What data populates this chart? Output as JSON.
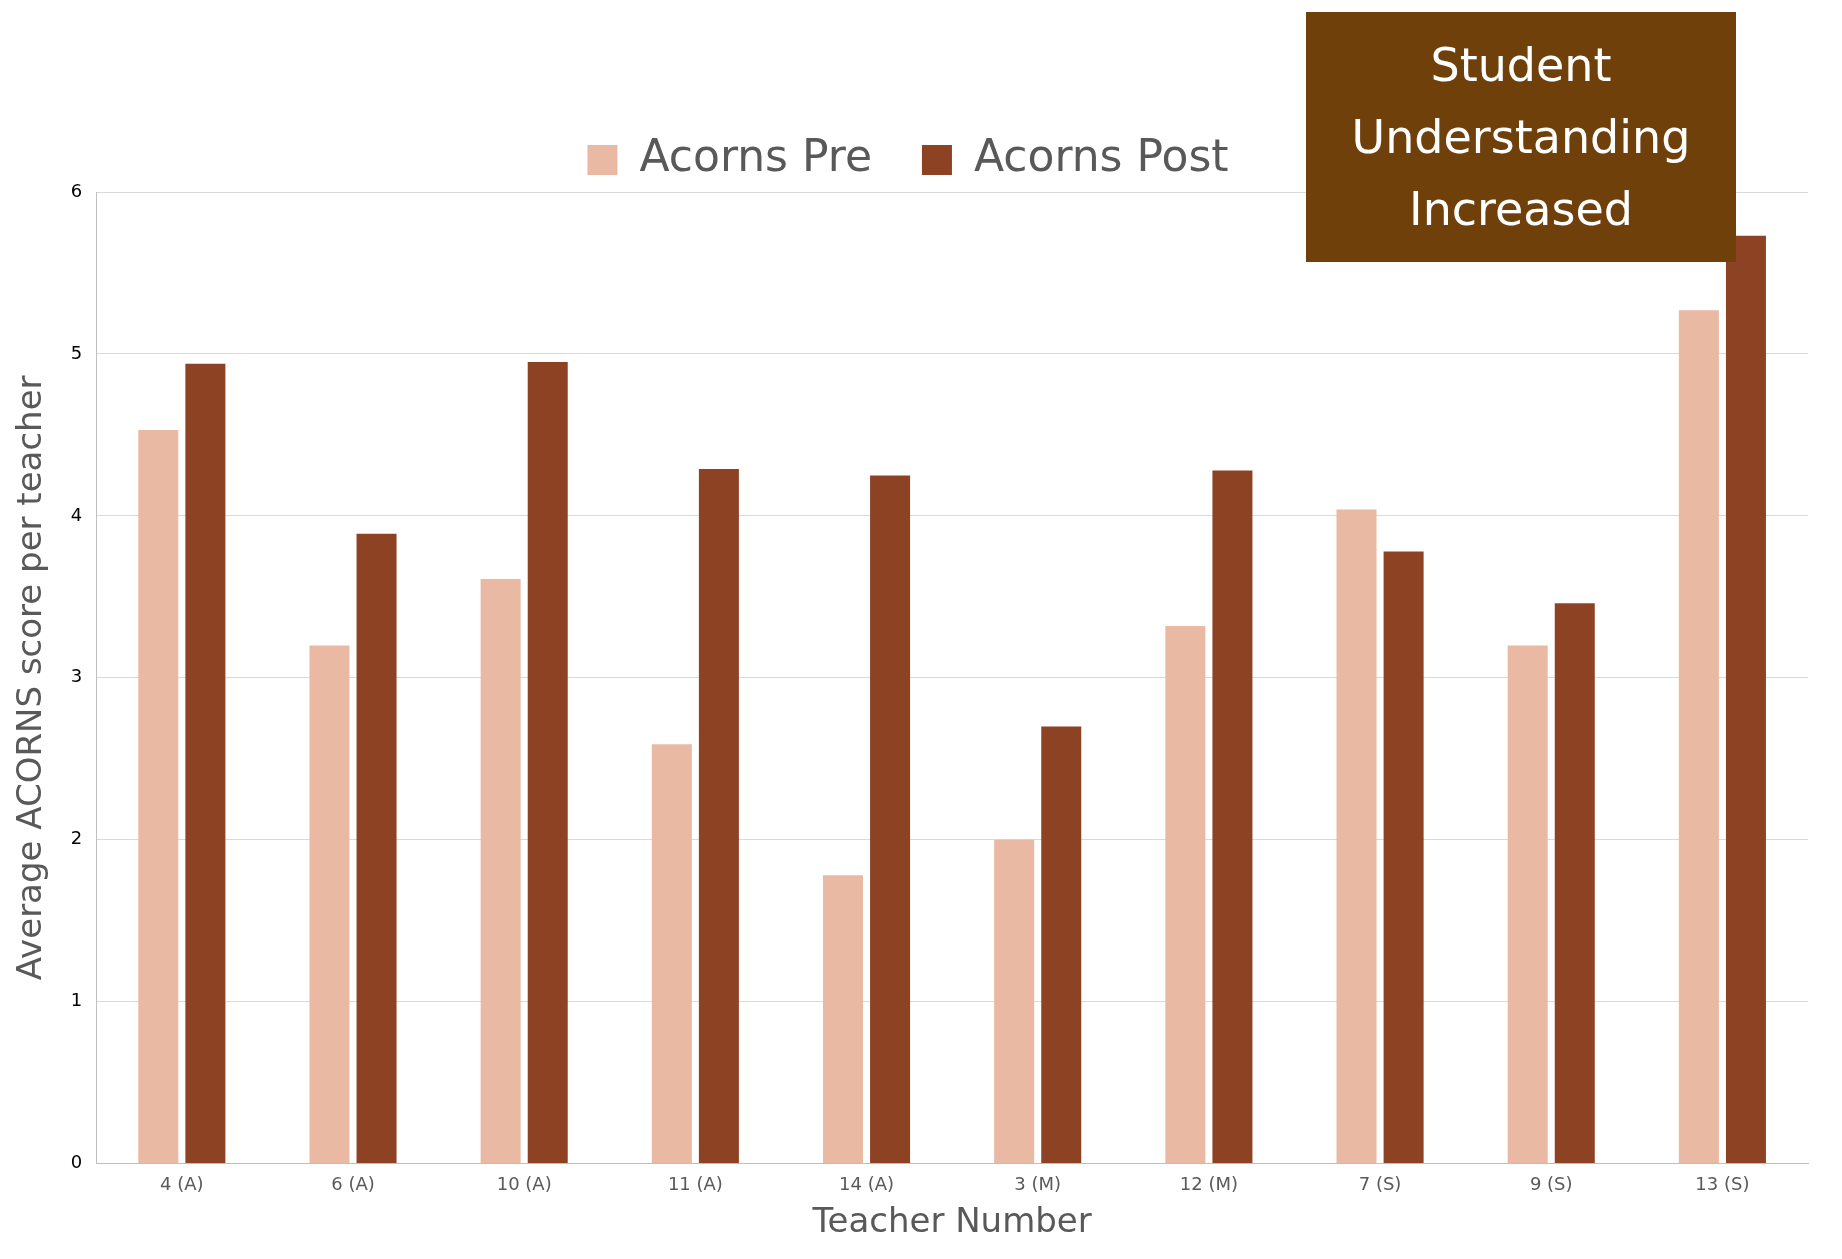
{
  "chart_data": {
    "type": "bar",
    "xlabel": "Teacher Number",
    "ylabel": "Average ACORNS score per teacher",
    "categories": [
      "4 (A)",
      "6 (A)",
      "10 (A)",
      "11 (A)",
      "14 (A)",
      "3 (M)",
      "12 (M)",
      "7 (S)",
      "9 (S)",
      "13 (S)"
    ],
    "series": [
      {
        "name": "Acorns Pre",
        "color": "#eab9a3",
        "values": [
          4.53,
          3.2,
          3.61,
          2.59,
          1.78,
          2.0,
          3.32,
          4.04,
          3.2,
          5.27
        ]
      },
      {
        "name": "Acorns Post",
        "color": "#8e4224",
        "values": [
          4.94,
          3.89,
          4.95,
          4.29,
          4.25,
          2.7,
          4.28,
          3.78,
          3.46,
          5.73
        ]
      }
    ],
    "ylim": [
      0,
      6
    ],
    "yticks": [
      0,
      1,
      2,
      3,
      4,
      5,
      6
    ],
    "grid": "y",
    "legend": "top",
    "annotations": [
      "Student Understanding Increased"
    ]
  }
}
